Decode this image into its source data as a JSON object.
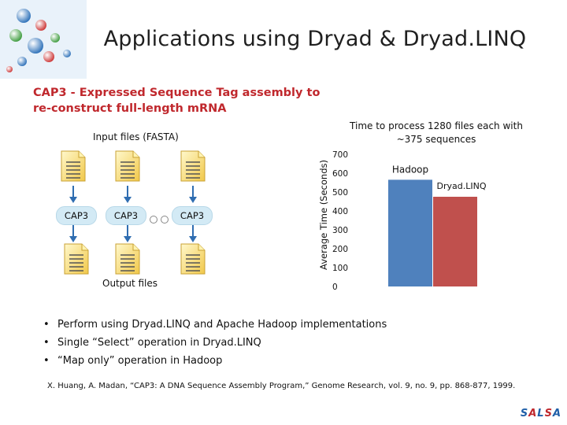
{
  "slide": {
    "title": "Applications using Dryad & Dryad.LINQ",
    "subtitle": "CAP3 - Expressed Sequence Tag assembly  to re-construct full-length mRNA",
    "input_label": "Input files (FASTA)",
    "output_label": "Output files",
    "cap_labels": [
      "CAP3",
      "CAP3",
      "CAP3"
    ],
    "bullets": [
      "Perform using Dryad.LINQ and Apache Hadoop implementations",
      "Single “Select” operation in Dryad.LINQ",
      "“Map only” operation in Hadoop"
    ],
    "reference": "X. Huang, A. Madan, “CAP3: A DNA Sequence Assembly Program,” Genome Research, vol. 9, no. 9, pp. 868-877, 1999.",
    "brand": [
      "S",
      "A",
      "L",
      "S",
      "A"
    ]
  },
  "colors": {
    "hadoop": "#4f81bd",
    "dryad": "#c0504d",
    "title_red": "#c0282d"
  },
  "chart_data": {
    "type": "bar",
    "title": "Time to process 1280 files each with ~375 sequences",
    "ylabel": "Average Time (Seconds)",
    "ylim": [
      0,
      700
    ],
    "yticks": [
      0,
      100,
      200,
      300,
      400,
      500,
      600,
      700
    ],
    "categories": [
      "Hadoop",
      "Dryad.LINQ"
    ],
    "values": [
      565,
      475
    ]
  }
}
